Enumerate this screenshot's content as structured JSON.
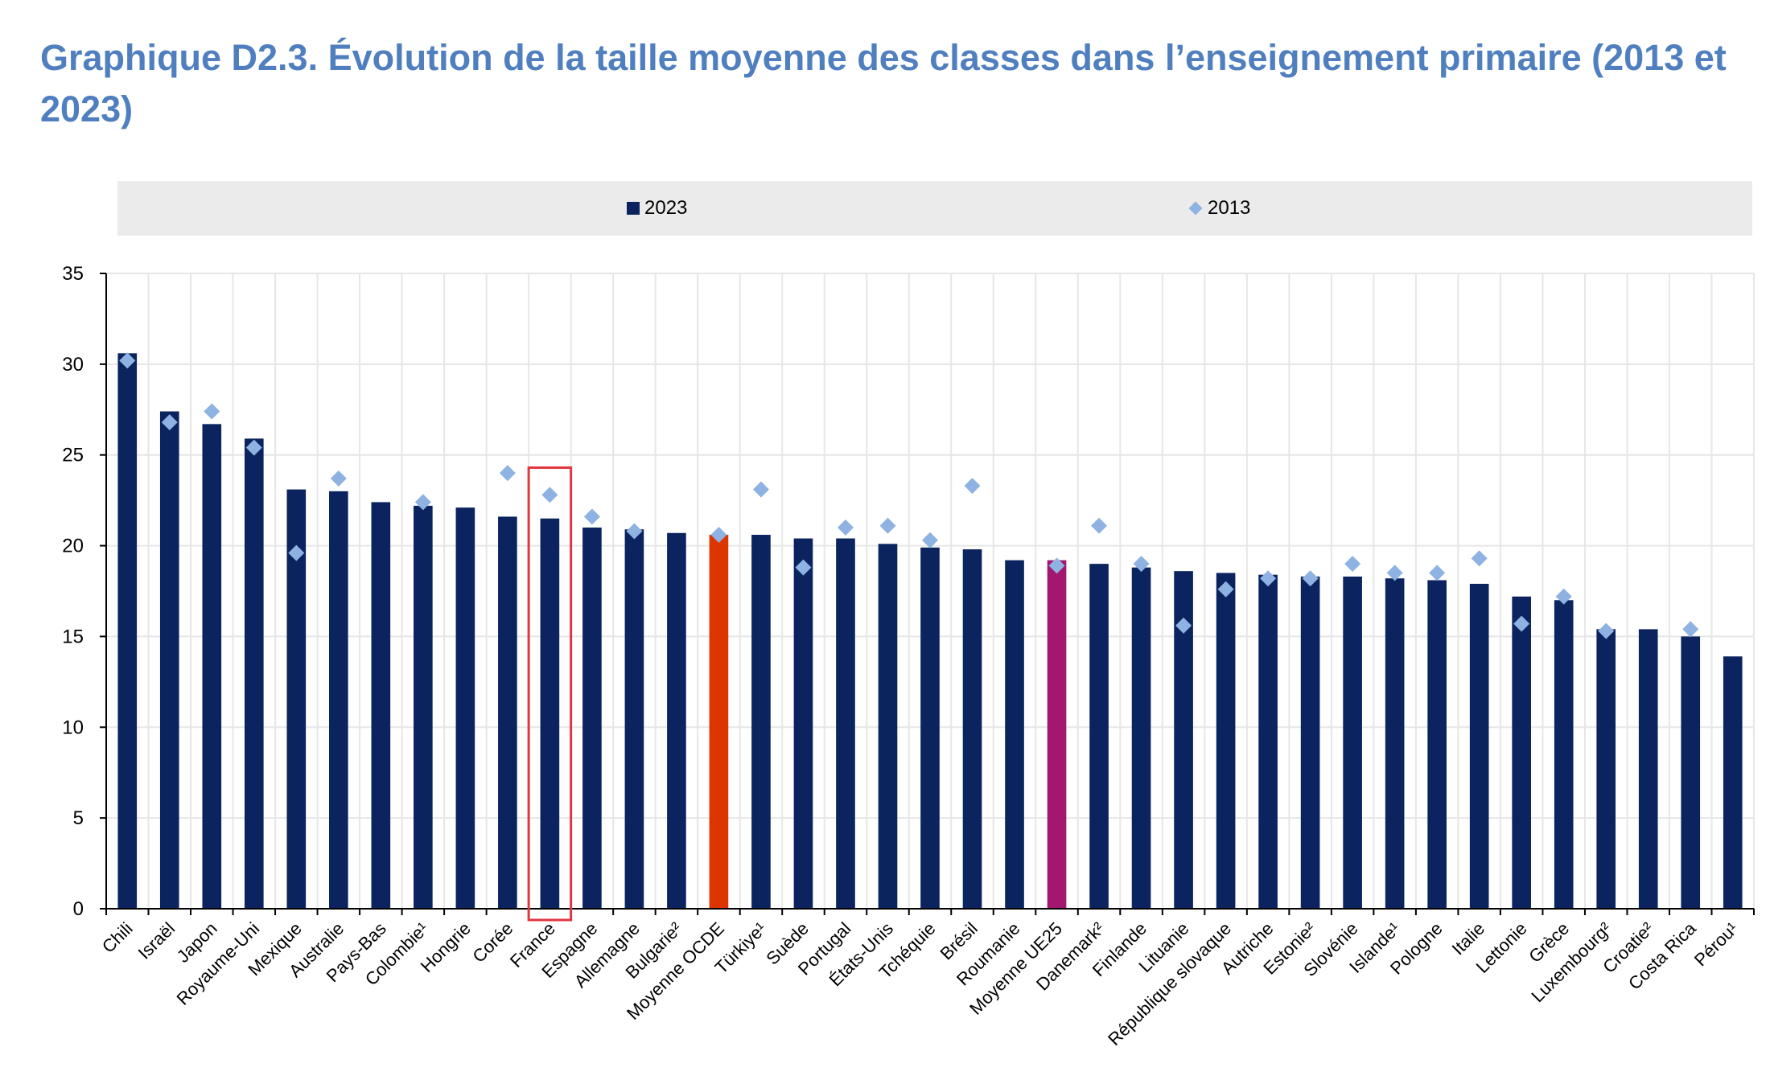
{
  "title": "Graphique D2.3. Évolution de la taille moyenne des classes dans l’enseignement primaire (2013 et 2023)",
  "colors": {
    "bar": "#0b2460",
    "oecd": "#dc3500",
    "eu": "#a3176f",
    "marker": "#8eb2e2",
    "grid": "#e6e6e6",
    "highlight": "#e0363f",
    "title": "#4f7fbf"
  },
  "chart_data": {
    "type": "bar",
    "title": "Graphique D2.3. Évolution de la taille moyenne des classes dans l’enseignement primaire (2013 et 2023)",
    "xlabel": "",
    "ylabel": "",
    "ylim": [
      0,
      35
    ],
    "yticks": [
      "0",
      "5",
      "10",
      "15",
      "20",
      "25",
      "30",
      "35"
    ],
    "grid": true,
    "legend_position": "top",
    "highlighted_category": "France",
    "categories": [
      "Chili",
      "Israël",
      "Japon",
      "Royaume-Uni",
      "Mexique",
      "Australie",
      "Pays-Bas",
      "Colombie¹",
      "Hongrie",
      "Corée",
      "France",
      "Espagne",
      "Allemagne",
      "Bulgarie²",
      "Moyenne OCDE",
      "Türkiye¹",
      "Suède",
      "Portugal",
      "États-Unis",
      "Tchéquie",
      "Brésil",
      "Roumanie",
      "Moyenne UE25",
      "Danemark²",
      "Finlande",
      "Lituanie",
      "République slovaque",
      "Autriche",
      "Estonie²",
      "Slovénie",
      "Islande¹",
      "Pologne",
      "Italie",
      "Lettonie",
      "Grèce",
      "Luxembourg²",
      "Croatie²",
      "Costa Rica",
      "Pérou¹"
    ],
    "special": {
      "Moyenne OCDE": "oecd",
      "Moyenne UE25": "eu"
    },
    "series": [
      {
        "name": "2023",
        "kind": "bar",
        "values": [
          30.6,
          27.4,
          26.7,
          25.9,
          23.1,
          23.0,
          22.4,
          22.2,
          22.1,
          21.6,
          21.5,
          21.0,
          20.9,
          20.7,
          20.6,
          20.6,
          20.4,
          20.4,
          20.1,
          19.9,
          19.8,
          19.2,
          19.2,
          19.0,
          18.8,
          18.6,
          18.5,
          18.4,
          18.3,
          18.3,
          18.2,
          18.1,
          17.9,
          17.2,
          17.0,
          15.4,
          15.4,
          15.0,
          13.9
        ]
      },
      {
        "name": "2013",
        "kind": "marker",
        "values": [
          30.2,
          26.8,
          27.4,
          25.4,
          19.6,
          23.7,
          null,
          22.4,
          null,
          24.0,
          22.8,
          21.6,
          20.8,
          null,
          20.6,
          23.1,
          18.8,
          21.0,
          21.1,
          20.3,
          23.3,
          null,
          18.9,
          21.1,
          19.0,
          15.6,
          17.6,
          18.2,
          18.2,
          19.0,
          18.5,
          18.5,
          19.3,
          15.7,
          17.2,
          15.3,
          null,
          15.4,
          null
        ]
      }
    ]
  }
}
